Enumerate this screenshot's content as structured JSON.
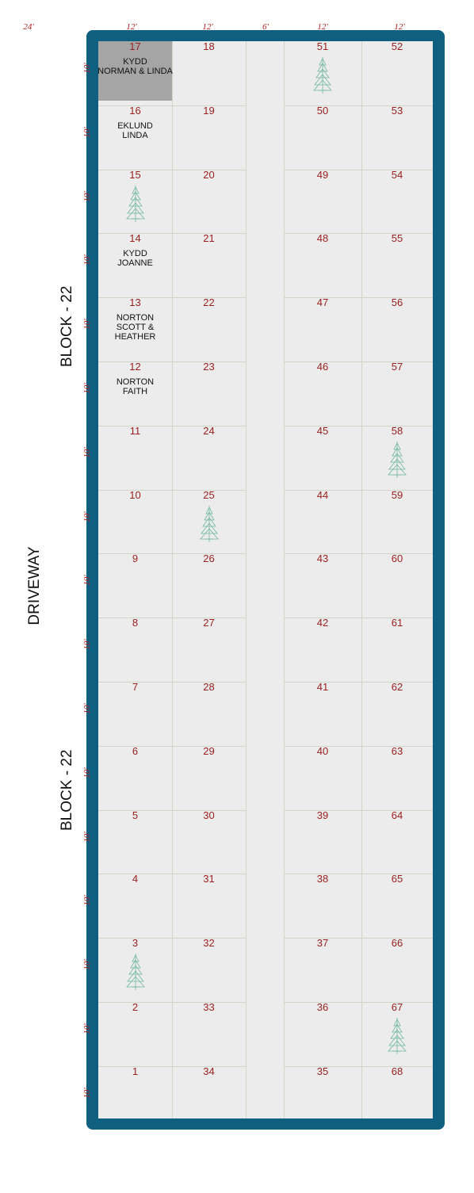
{
  "column_widths": [
    "24'",
    "12'",
    "12'",
    "6'",
    "12'",
    "12'"
  ],
  "row_height": "10'",
  "side_labels": {
    "driveway": "DRIVEWAY",
    "block_top": "BLOCK - 22",
    "block_bottom": "BLOCK - 22"
  },
  "colors": {
    "border": "#0f5f80",
    "plot_number": "#9a1e1e",
    "dimension": "#b01e1e",
    "reserved_plot": "#a5a5a5",
    "tree": "#6fb7a0"
  },
  "plots": [
    {
      "num": "17",
      "owner_line1": "KYDD",
      "owner_line2": "NORMAN & LINDA",
      "reserved": true
    },
    {
      "num": "16",
      "owner_line1": "EKLUND",
      "owner_line2": "LINDA"
    },
    {
      "num": "15",
      "tree": true
    },
    {
      "num": "14",
      "owner_line1": "KYDD",
      "owner_line2": "JOANNE"
    },
    {
      "num": "13",
      "owner_line1": "NORTON",
      "owner_line2": "SCOTT & HEATHER"
    },
    {
      "num": "12",
      "owner_line1": "NORTON",
      "owner_line2": "FAITH"
    },
    {
      "num": "11"
    },
    {
      "num": "10"
    },
    {
      "num": "9"
    },
    {
      "num": "8"
    },
    {
      "num": "7"
    },
    {
      "num": "6"
    },
    {
      "num": "5"
    },
    {
      "num": "4"
    },
    {
      "num": "3",
      "tree": true
    },
    {
      "num": "2"
    },
    {
      "num": "1"
    },
    {
      "num": "18"
    },
    {
      "num": "19"
    },
    {
      "num": "20"
    },
    {
      "num": "21"
    },
    {
      "num": "22"
    },
    {
      "num": "23"
    },
    {
      "num": "24"
    },
    {
      "num": "25",
      "tree": true
    },
    {
      "num": "26"
    },
    {
      "num": "27"
    },
    {
      "num": "28"
    },
    {
      "num": "29"
    },
    {
      "num": "30"
    },
    {
      "num": "31"
    },
    {
      "num": "32"
    },
    {
      "num": "33"
    },
    {
      "num": "34"
    },
    {
      "num": "51",
      "tree": true
    },
    {
      "num": "50"
    },
    {
      "num": "49"
    },
    {
      "num": "48"
    },
    {
      "num": "47"
    },
    {
      "num": "46"
    },
    {
      "num": "45"
    },
    {
      "num": "44"
    },
    {
      "num": "43"
    },
    {
      "num": "42"
    },
    {
      "num": "41"
    },
    {
      "num": "40"
    },
    {
      "num": "39"
    },
    {
      "num": "38"
    },
    {
      "num": "37"
    },
    {
      "num": "36"
    },
    {
      "num": "35"
    },
    {
      "num": "52"
    },
    {
      "num": "53"
    },
    {
      "num": "54"
    },
    {
      "num": "55"
    },
    {
      "num": "56"
    },
    {
      "num": "57"
    },
    {
      "num": "58",
      "tree": true
    },
    {
      "num": "59"
    },
    {
      "num": "60"
    },
    {
      "num": "61"
    },
    {
      "num": "62"
    },
    {
      "num": "63"
    },
    {
      "num": "64"
    },
    {
      "num": "65"
    },
    {
      "num": "66"
    },
    {
      "num": "67",
      "tree": true
    },
    {
      "num": "68"
    }
  ]
}
